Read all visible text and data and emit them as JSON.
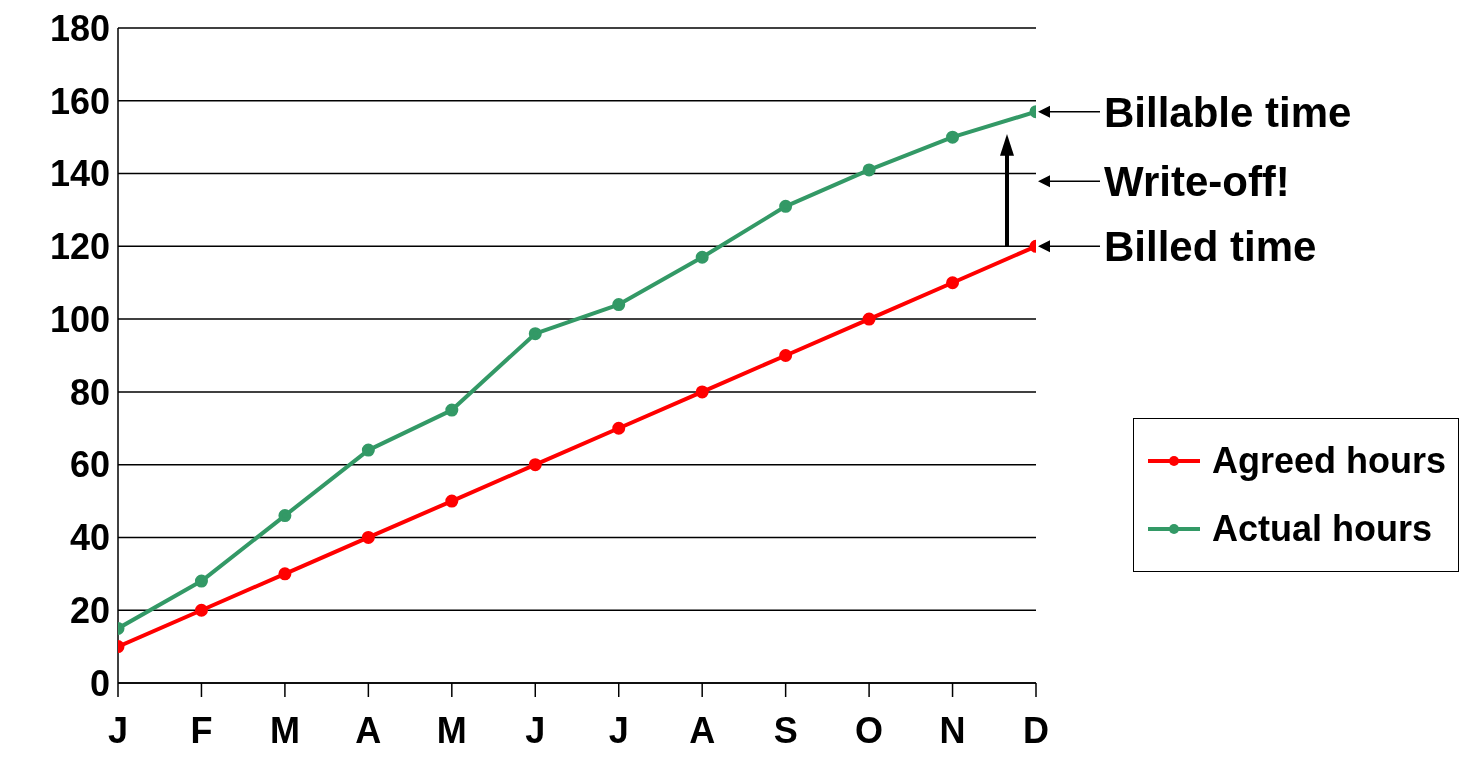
{
  "chart_data": {
    "type": "line",
    "categories": [
      "J",
      "F",
      "M",
      "A",
      "M",
      "J",
      "J",
      "A",
      "S",
      "O",
      "N",
      "D"
    ],
    "series": [
      {
        "name": "Agreed hours",
        "color": "#ff0000",
        "values": [
          10,
          20,
          30,
          40,
          50,
          60,
          70,
          80,
          90,
          100,
          110,
          120
        ]
      },
      {
        "name": "Actual hours",
        "color": "#339966",
        "values": [
          15,
          28,
          46,
          64,
          75,
          96,
          104,
          117,
          131,
          141,
          150,
          157
        ]
      }
    ],
    "ylim": [
      0,
      180
    ],
    "yticks": [
      0,
      20,
      40,
      60,
      80,
      100,
      120,
      140,
      160,
      180
    ],
    "grid": "y",
    "legend": "right",
    "marker": "circle",
    "line_style": "solid",
    "annotations": [
      {
        "text": "Billable time",
        "x": "D",
        "y": 157
      },
      "Write-off!",
      {
        "text": "Billed time",
        "x": "D",
        "y": 120
      }
    ]
  }
}
